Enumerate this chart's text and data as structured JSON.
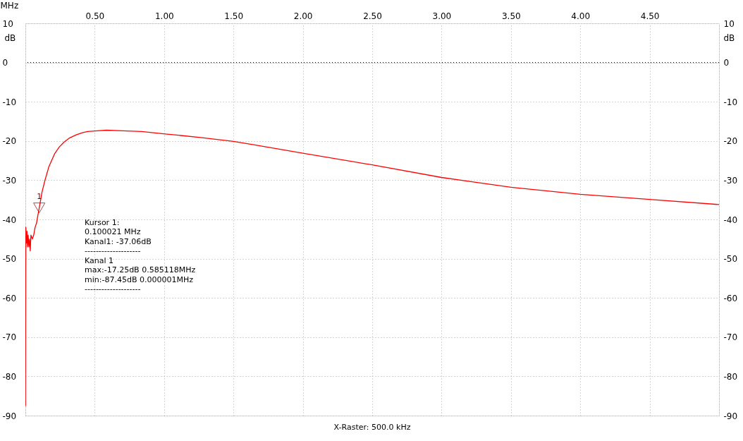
{
  "chart_data": {
    "type": "line",
    "xlabel": "MHz",
    "ylabel": "dB",
    "y2label": "dB",
    "xlim": [
      0,
      5.0
    ],
    "xticks": [
      {
        "value": 0,
        "label": null
      },
      {
        "value": 0.5,
        "label": "0.50"
      },
      {
        "value": 1.0,
        "label": "1.00"
      },
      {
        "value": 1.5,
        "label": "1.50"
      },
      {
        "value": 2.0,
        "label": "2.00"
      },
      {
        "value": 2.5,
        "label": "2.50"
      },
      {
        "value": 3.0,
        "label": "3.00"
      },
      {
        "value": 3.5,
        "label": "3.50"
      },
      {
        "value": 4.0,
        "label": "4.00"
      },
      {
        "value": 4.5,
        "label": "4.50"
      },
      {
        "value": 5.0,
        "label": null
      }
    ],
    "ylim": [
      -90,
      10
    ],
    "yticks": [
      -90,
      -80,
      -70,
      -60,
      -50,
      -40,
      -30,
      -20,
      -10,
      0,
      10
    ],
    "y2lim": [
      -90,
      10
    ],
    "y2ticks": [
      -90,
      -80,
      -70,
      -60,
      -50,
      -40,
      -30,
      -20,
      -10,
      0,
      10
    ],
    "grid": true,
    "line_style": "solid",
    "marker": "none",
    "ref_lines": [
      {
        "axis": "y",
        "value": 0,
        "label": null,
        "color": "#000000",
        "line_style": "dotted"
      }
    ],
    "series": [
      {
        "color": "#ff0000",
        "x": [
          1e-06,
          0.001,
          0.003,
          0.008,
          0.012,
          0.015,
          0.02,
          0.025,
          0.03,
          0.035,
          0.04,
          0.05,
          0.06,
          0.07,
          0.08,
          0.09,
          0.1,
          0.12,
          0.142,
          0.17,
          0.21,
          0.245,
          0.278,
          0.32,
          0.363,
          0.41,
          0.448,
          0.52,
          0.585,
          0.7,
          0.838,
          1.008,
          1.262,
          1.5,
          1.653,
          2.0,
          2.5,
          3.0,
          3.5,
          4.0,
          4.5,
          5.0
        ],
        "values": [
          -87.5,
          -87.5,
          -42,
          -46,
          -43,
          -47,
          -44,
          -47,
          -45,
          -48,
          -44,
          -45,
          -44,
          -42,
          -41,
          -39,
          -37.06,
          -33,
          -29.9,
          -26.5,
          -23.3,
          -21.5,
          -20.3,
          -19.2,
          -18.5,
          -17.9,
          -17.6,
          -17.4,
          -17.25,
          -17.4,
          -17.6,
          -18.2,
          -19.1,
          -20.1,
          -21.0,
          -23.1,
          -26.1,
          -29.3,
          -31.8,
          -33.6,
          -34.9,
          -36.2
        ]
      },
      {
        "type": "scatter",
        "name": "1",
        "color": "#800000",
        "marker": "triangle",
        "x": [
          0.1
        ],
        "values": [
          -37.06
        ]
      }
    ],
    "annotations": [
      "Kursor 1:",
      "0.100021 MHz",
      "Kanal1: -37.06dB",
      "--------------------",
      "Kanal 1",
      "max:-17.25dB 0.585118MHz",
      "min:-87.45dB 0.000001MHz",
      "--------------------",
      "X-Raster: 500.0 kHz"
    ]
  }
}
